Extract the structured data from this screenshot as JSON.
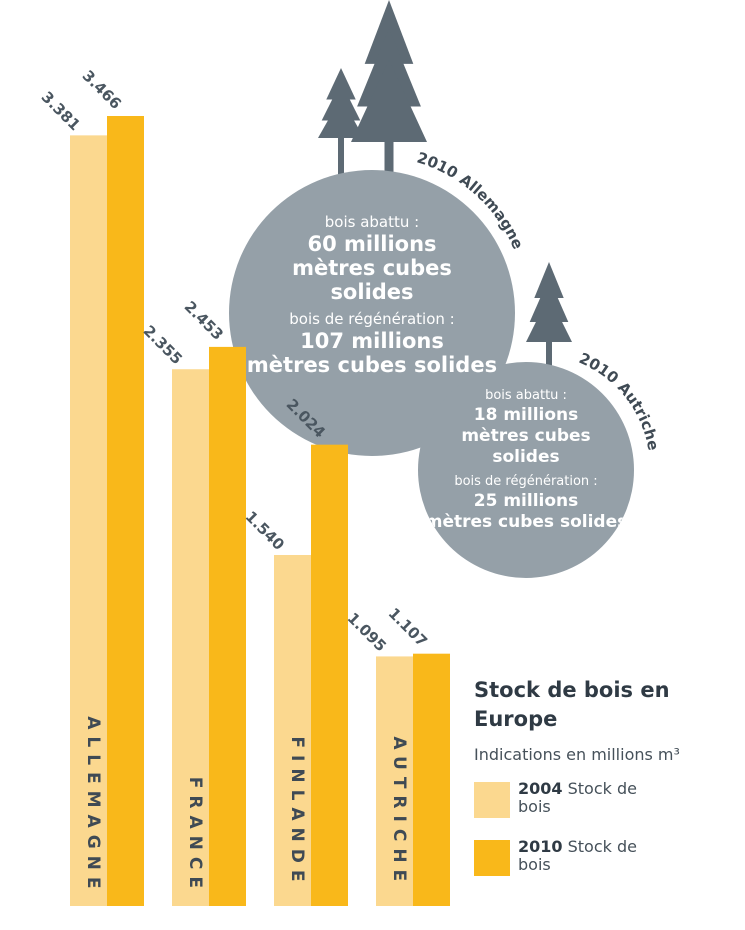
{
  "chart_data": {
    "type": "bar",
    "title": "Stock de bois en Europe",
    "subtitle": "Indications en millions m³",
    "categories": [
      "ALLEMAGNE",
      "FRANCE",
      "FINLANDE",
      "AUTRICHE"
    ],
    "series": [
      {
        "name": "2004 Stock de bois",
        "year": "2004",
        "label": "Stock de bois",
        "color": "#fbd88f",
        "values": [
          3381,
          2355,
          1540,
          1095
        ],
        "value_labels": [
          "3.381",
          "2.355",
          "1.540",
          "1.095"
        ]
      },
      {
        "name": "2010 Stock de bois",
        "year": "2010",
        "label": "Stock de bois",
        "color": "#f9b81a",
        "values": [
          3466,
          2453,
          2024,
          1107
        ],
        "value_labels": [
          "3.466",
          "2.453",
          "2.024",
          "1.107"
        ]
      }
    ],
    "ylim": [
      0,
      3466
    ],
    "grid": false,
    "legend_position": "bottom-right"
  },
  "bubbles": [
    {
      "curve_label": "2010 Allemagne",
      "lines": [
        {
          "text": "bois abattu :",
          "style": "small"
        },
        {
          "text": "60 millions",
          "style": "big"
        },
        {
          "text": "mètres cubes",
          "style": "big"
        },
        {
          "text": "solides",
          "style": "big"
        },
        {
          "text": "bois de régénération :",
          "style": "small"
        },
        {
          "text": "107 millions",
          "style": "big"
        },
        {
          "text": "mètres cubes solides",
          "style": "big"
        }
      ]
    },
    {
      "curve_label": "2010 Autriche",
      "lines": [
        {
          "text": "bois abattu :",
          "style": "small"
        },
        {
          "text": "18 millions",
          "style": "big"
        },
        {
          "text": "mètres cubes",
          "style": "big"
        },
        {
          "text": "solides",
          "style": "big"
        },
        {
          "text": "bois de régénération :",
          "style": "small"
        },
        {
          "text": "25 millions",
          "style": "big"
        },
        {
          "text": "mètres cubes solides",
          "style": "big"
        }
      ]
    }
  ],
  "colors": {
    "tree": "#5d6a74",
    "bubble": "#95a0a8"
  }
}
